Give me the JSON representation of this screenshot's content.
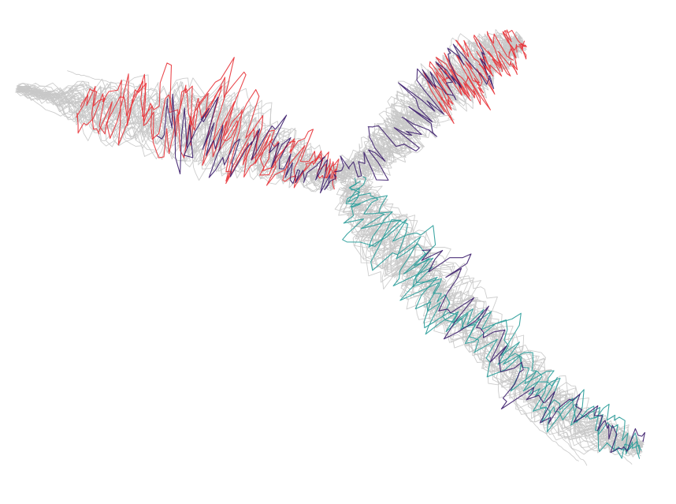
{
  "map": {
    "background_color": "#ffffff",
    "colors": {
      "context_trace": "#c8c8c8",
      "red_route": "#e8343a",
      "purple_route": "#3b1c6b",
      "teal_route": "#2a9d9a"
    },
    "branches": [
      {
        "name": "west-branch",
        "route_colors": [
          "red_route",
          "purple_route"
        ]
      },
      {
        "name": "northeast-branch",
        "route_colors": [
          "red_route",
          "purple_route"
        ]
      },
      {
        "name": "southeast-branch",
        "route_colors": [
          "teal_route",
          "purple_route"
        ]
      }
    ]
  }
}
